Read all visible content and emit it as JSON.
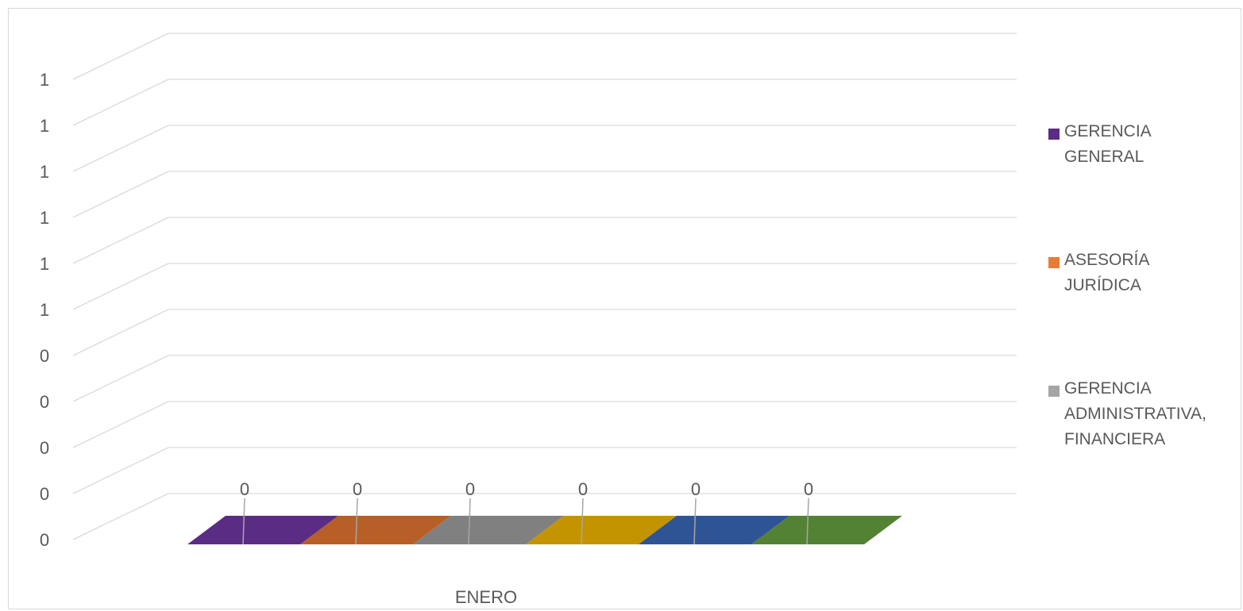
{
  "chart_data": {
    "type": "bar",
    "categories": [
      "ENERO"
    ],
    "y_tick_labels": [
      "0",
      "0",
      "0",
      "0",
      "0",
      "1",
      "1",
      "1",
      "1",
      "1",
      "1"
    ],
    "series": [
      {
        "name": "GERENCIA GENERAL",
        "values": [
          0
        ],
        "color": "#5b2c84"
      },
      {
        "name": "ASESORÍA JURÍDICA",
        "values": [
          0
        ],
        "color": "#b85f27"
      },
      {
        "name": "GERENCIA ADMINISTRATIVA, FINANCIERA",
        "values": [
          0
        ],
        "color": "#808080"
      },
      {
        "values": [
          0
        ],
        "color": "#c49400"
      },
      {
        "values": [
          0
        ],
        "color": "#2f5496"
      },
      {
        "values": [
          0
        ],
        "color": "#548235"
      }
    ],
    "data_labels": [
      "0",
      "0",
      "0",
      "0",
      "0",
      "0"
    ],
    "grid": true,
    "legend_position": "right",
    "style": "3d-clustered-column"
  },
  "legend": {
    "items": [
      {
        "line1": "GERENCIA",
        "line2": "GENERAL",
        "line3": "",
        "color": "#5b2c84"
      },
      {
        "line1": "ASESORÍA",
        "line2": "JURÍDICA",
        "line3": "",
        "color": "#e97c33"
      },
      {
        "line1": "GERENCIA",
        "line2": "ADMINISTRATIVA,",
        "line3": "FINANCIERA",
        "color": "#a5a5a5"
      }
    ]
  }
}
